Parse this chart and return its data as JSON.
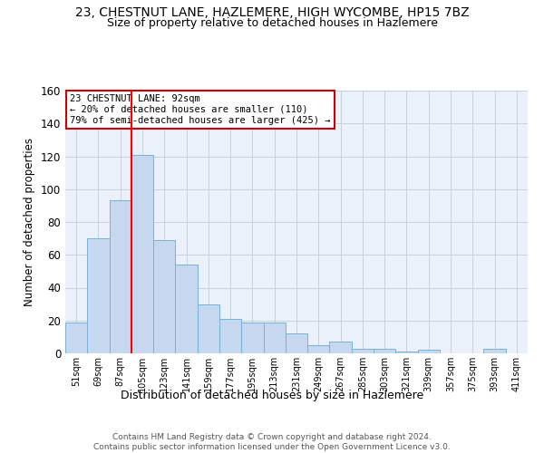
{
  "title": "23, CHESTNUT LANE, HAZLEMERE, HIGH WYCOMBE, HP15 7BZ",
  "subtitle": "Size of property relative to detached houses in Hazlemere",
  "xlabel": "Distribution of detached houses by size in Hazlemere",
  "ylabel": "Number of detached properties",
  "categories": [
    "51sqm",
    "69sqm",
    "87sqm",
    "105sqm",
    "123sqm",
    "141sqm",
    "159sqm",
    "177sqm",
    "195sqm",
    "213sqm",
    "231sqm",
    "249sqm",
    "267sqm",
    "285sqm",
    "303sqm",
    "321sqm",
    "339sqm",
    "357sqm",
    "375sqm",
    "393sqm",
    "411sqm"
  ],
  "values": [
    19,
    70,
    93,
    121,
    69,
    54,
    30,
    21,
    19,
    19,
    12,
    5,
    7,
    3,
    3,
    1,
    2,
    0,
    0,
    3,
    0
  ],
  "bar_color": "#c5d8f0",
  "bar_edge_color": "#7ab0d8",
  "ylim": [
    0,
    160
  ],
  "yticks": [
    0,
    20,
    40,
    60,
    80,
    100,
    120,
    140,
    160
  ],
  "red_line_x": 2.5,
  "annotation_text": "23 CHESTNUT LANE: 92sqm\n← 20% of detached houses are smaller (110)\n79% of semi-detached houses are larger (425) →",
  "annotation_box_color": "#ffffff",
  "annotation_box_edgecolor": "#cc0000",
  "footer_line1": "Contains HM Land Registry data © Crown copyright and database right 2024.",
  "footer_line2": "Contains public sector information licensed under the Open Government Licence v3.0.",
  "background_color": "#ffffff",
  "plot_bg_color": "#eaf1fb",
  "grid_color": "#c8d0e0",
  "title_fontsize": 10,
  "subtitle_fontsize": 9
}
